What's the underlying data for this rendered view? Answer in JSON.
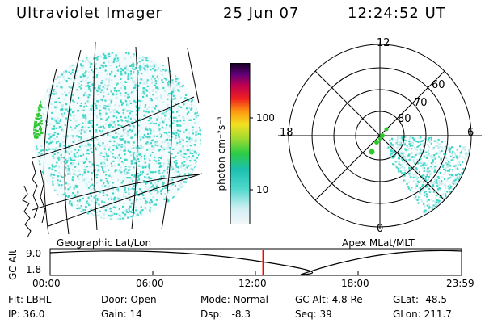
{
  "header": {
    "title": "Ultraviolet Imager",
    "date": "25 Jun 07",
    "time": "12:24:52 UT"
  },
  "colorbar": {
    "unit_label": "photon cm⁻²s⁻¹",
    "ticks": [
      "100",
      "10"
    ]
  },
  "polar": {
    "labels": {
      "top": "12",
      "left": "18",
      "right": "6",
      "bottom": "0",
      "rings": [
        "80",
        "70",
        "60"
      ]
    }
  },
  "panel_captions": {
    "left": "Geographic Lat/Lon",
    "right": "Apex MLat/MLT"
  },
  "timeline": {
    "axis_label": "GC Alt",
    "y_ticks": [
      "9.0",
      "1.8"
    ],
    "x_ticks": [
      "00:00",
      "06:00",
      "12:00",
      "18:00",
      "23:59"
    ],
    "marker_fraction": 0.5173
  },
  "status": {
    "row1": [
      "Flt: LBHL",
      "Door: Open",
      "Mode: Normal",
      "GC Alt: 4.8 Re",
      "GLat: -48.5"
    ],
    "row2": [
      "IP: 36.0",
      "Gain: 14",
      "Dsp:   -8.3",
      "Seq: 39",
      "GLon: 211.7"
    ]
  },
  "colors": {
    "background": "#ffffff",
    "marker": "#ff0000",
    "speckle_primary": "#3fd6c8",
    "speckle_light": "#c8ecf0",
    "green_band": "#2ec82e"
  },
  "icons": [
    "uv-image-speckle",
    "polar-grid",
    "colorbar"
  ]
}
